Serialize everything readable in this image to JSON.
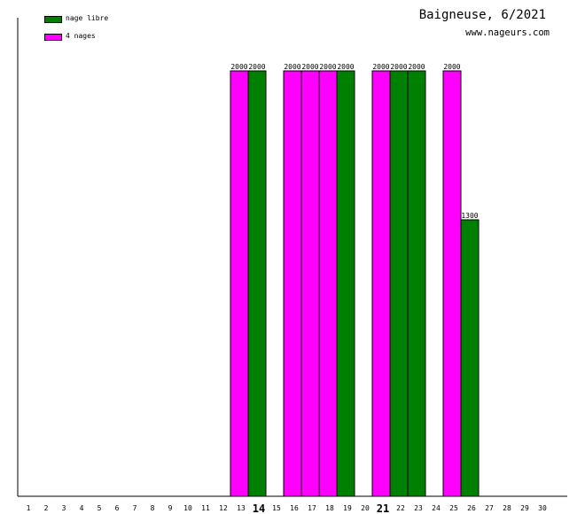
{
  "header": {
    "title": "Baigneuse, 6/2021",
    "subtitle": "www.nageurs.com"
  },
  "legend": [
    {
      "label": "nage libre",
      "color": "#008000"
    },
    {
      "label": "4 nages",
      "color": "#ff00ff"
    }
  ],
  "chart_data": {
    "type": "bar",
    "title": "Baigneuse, 6/2021",
    "categories": [
      "1",
      "2",
      "3",
      "4",
      "5",
      "6",
      "7",
      "8",
      "9",
      "10",
      "11",
      "12",
      "13",
      "14",
      "15",
      "16",
      "17",
      "18",
      "19",
      "20",
      "21",
      "22",
      "23",
      "24",
      "25",
      "26",
      "27",
      "28",
      "29",
      "30"
    ],
    "highlighted_categories": [
      "14",
      "21"
    ],
    "ylim": [
      0,
      2000
    ],
    "grid": false,
    "legend_position": "top-left",
    "bars": [
      {
        "day": 13,
        "series": "4 nages",
        "value": 2000
      },
      {
        "day": 14,
        "series": "nage libre",
        "value": 2000
      },
      {
        "day": 16,
        "series": "4 nages",
        "value": 2000
      },
      {
        "day": 17,
        "series": "4 nages",
        "value": 2000
      },
      {
        "day": 18,
        "series": "4 nages",
        "value": 2000
      },
      {
        "day": 19,
        "series": "nage libre",
        "value": 2000
      },
      {
        "day": 21,
        "series": "4 nages",
        "value": 2000
      },
      {
        "day": 22,
        "series": "nage libre",
        "value": 2000
      },
      {
        "day": 23,
        "series": "nage libre",
        "value": 2000
      },
      {
        "day": 25,
        "series": "4 nages",
        "value": 2000
      },
      {
        "day": 26,
        "series": "nage libre",
        "value": 1300
      }
    ]
  }
}
